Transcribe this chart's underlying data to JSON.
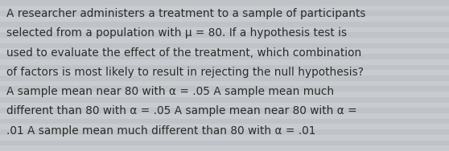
{
  "text_lines": [
    "A researcher administers a treatment to a sample of participants",
    "selected from a population with μ = 80. If a hypothesis test is",
    "used to evaluate the effect of the treatment, which combination",
    "of factors is most likely to result in rejecting the null hypothesis?​",
    "A sample mean near 80 with α = .05 ​A sample mean much",
    "different than 80 with α = .05 ​A sample mean near 80 with α =",
    ".01 A sample mean much different than 80 with α = .01"
  ],
  "bg_color": "#cdd0d5",
  "stripe_light": "#c8cbcf",
  "stripe_dark": "#bfc2c7",
  "text_color": "#2b2b2b",
  "font_size": 9.8,
  "fig_width": 5.58,
  "fig_height": 1.88,
  "dpi": 100
}
